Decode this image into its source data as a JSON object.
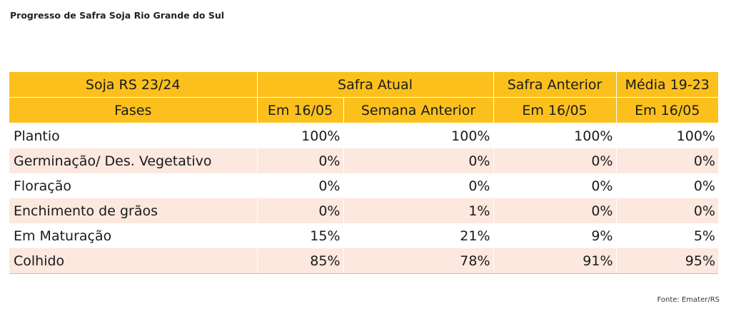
{
  "title": "Progresso de Safra Soja Rio Grande do Sul",
  "source": "Fonte: Emater/RS",
  "chart_data": {
    "type": "table",
    "title": "Progresso de Safra Soja Rio Grande do Sul",
    "header_groups": [
      {
        "label": "Soja RS 23/24",
        "span": 1
      },
      {
        "label": "Safra Atual",
        "span": 2
      },
      {
        "label": "Safra Anterior",
        "span": 1
      },
      {
        "label": "Média 19-23",
        "span": 1
      }
    ],
    "columns": [
      "Fases",
      "Em 16/05",
      "Semana Anterior",
      "Em 16/05",
      "Em 16/05"
    ],
    "rows": [
      [
        "Plantio",
        "100%",
        "100%",
        "100%",
        "100%"
      ],
      [
        "Germinação/ Des. Vegetativo",
        "0%",
        "0%",
        "0%",
        "0%"
      ],
      [
        "Floração",
        "0%",
        "0%",
        "0%",
        "0%"
      ],
      [
        "Enchimento de grãos",
        "0%",
        "1%",
        "0%",
        "0%"
      ],
      [
        "Em Maturação",
        "15%",
        "21%",
        "9%",
        "5%"
      ],
      [
        "Colhido",
        "85%",
        "78%",
        "91%",
        "95%"
      ]
    ],
    "colors": {
      "header": "#fcc01d",
      "stripe": "#fce8df"
    }
  }
}
